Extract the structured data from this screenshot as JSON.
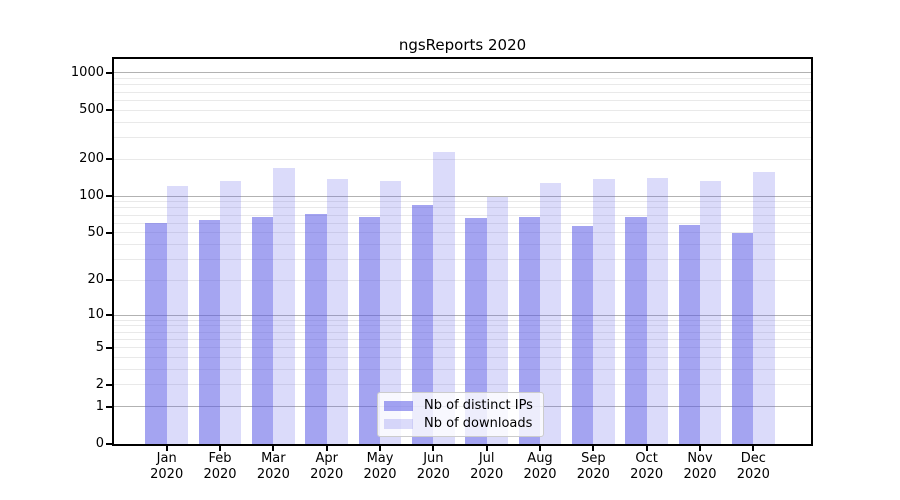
{
  "title": "ngsReports 2020",
  "chart_data": {
    "type": "bar",
    "title": "ngsReports 2020",
    "categories": [
      "Jan",
      "Feb",
      "Mar",
      "Apr",
      "May",
      "Jun",
      "Jul",
      "Aug",
      "Sep",
      "Oct",
      "Nov",
      "Dec"
    ],
    "category_year": "2020",
    "series": [
      {
        "name": "Nb of distinct IPs",
        "color": "#a8a8f0",
        "fill": "rgba(90,90,230,0.55)",
        "values": [
          60,
          64,
          67,
          72,
          67,
          84,
          66,
          68,
          57,
          68,
          58,
          50
        ]
      },
      {
        "name": "Nb of downloads",
        "color": "#dcdcf8",
        "fill": "rgba(90,90,230,0.22)",
        "values": [
          120,
          133,
          168,
          139,
          134,
          228,
          99,
          129,
          137,
          140,
          134,
          157
        ]
      }
    ],
    "y_axis": {
      "scale": "log10(1+x)",
      "ticks": [
        0,
        1,
        2,
        5,
        10,
        20,
        50,
        100,
        200,
        500,
        1000
      ],
      "major_gridlines": [
        1,
        10,
        100,
        1000
      ],
      "minor_gridlines": [
        2,
        3,
        4,
        5,
        6,
        7,
        8,
        9,
        20,
        30,
        40,
        50,
        60,
        70,
        80,
        90,
        200,
        300,
        400,
        500,
        600,
        700,
        800,
        900
      ],
      "display_max": 1294
    },
    "xlabel": "",
    "ylabel": "",
    "grid": "horizontal",
    "legend_position": "lower-center"
  }
}
